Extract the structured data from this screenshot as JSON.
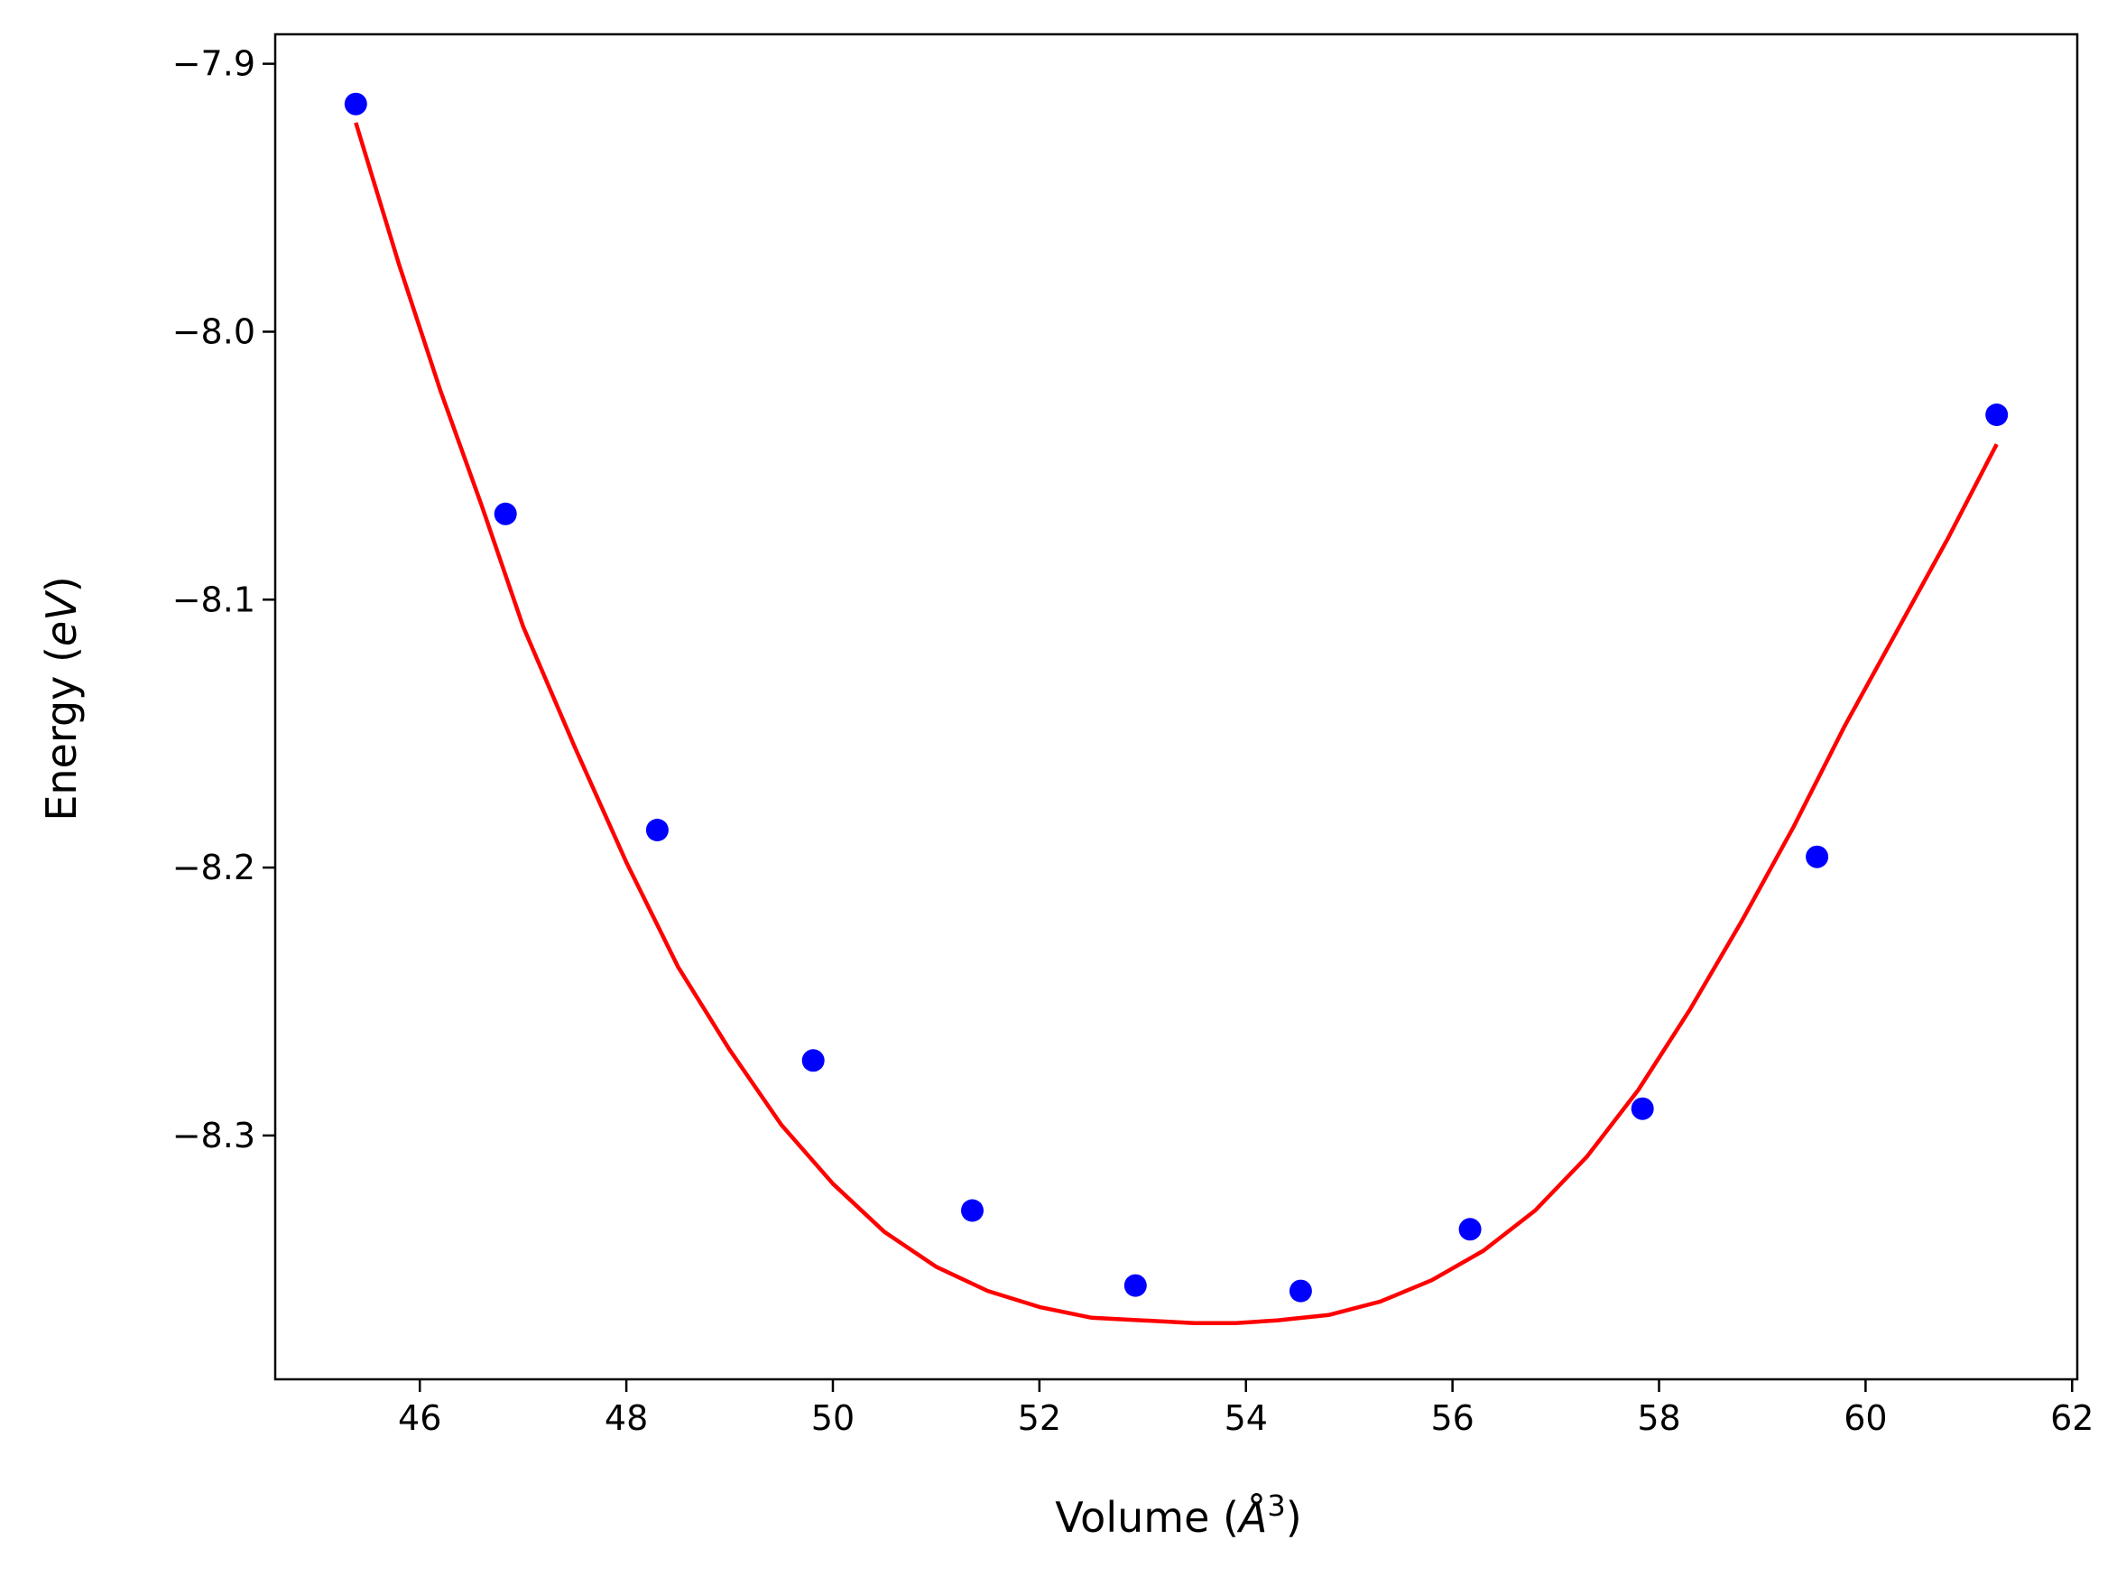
{
  "chart_data": {
    "type": "scatter",
    "xlabel": "Volume (",
    "xlabel_symbol": "Å",
    "xlabel_power": "3",
    "xlabel_close": ")",
    "ylabel": "Energy (",
    "ylabel_unit": "eV",
    "ylabel_close": ")",
    "xlim": [
      44.6,
      62.05
    ],
    "ylim": [
      -8.391,
      -7.889
    ],
    "xticks": [
      46,
      48,
      50,
      52,
      54,
      56,
      58,
      60,
      62
    ],
    "yticks": [
      -7.9,
      -8.0,
      -8.1,
      -8.2,
      -8.3
    ],
    "ytick_labels": [
      "−7.9",
      "−8.0",
      "−8.1",
      "−8.2",
      "−8.3"
    ],
    "grid": false,
    "series": [
      {
        "kind": "points",
        "color": "#0000ff",
        "x": [
          45.38,
          46.83,
          48.3,
          49.81,
          51.35,
          52.93,
          54.53,
          56.17,
          57.84,
          59.53,
          61.27
        ],
        "y": [
          -7.915,
          -8.068,
          -8.186,
          -8.272,
          -8.328,
          -8.356,
          -8.358,
          -8.335,
          -8.29,
          -8.196,
          -8.031
        ]
      },
      {
        "kind": "fit-curve",
        "color": "#ff0000",
        "x": [
          45.38,
          45.8,
          46.2,
          46.6,
          47.0,
          47.5,
          48.0,
          48.5,
          49.0,
          49.5,
          50.0,
          50.5,
          51.0,
          51.5,
          52.0,
          52.5,
          53.0,
          53.5,
          53.9,
          54.3,
          54.8,
          55.3,
          55.8,
          56.3,
          56.8,
          57.3,
          57.8,
          58.3,
          58.8,
          59.3,
          59.8,
          60.3,
          60.8,
          61.27
        ],
        "y": [
          -7.922,
          -7.975,
          -8.022,
          -8.065,
          -8.11,
          -8.155,
          -8.198,
          -8.237,
          -8.268,
          -8.296,
          -8.318,
          -8.336,
          -8.349,
          -8.358,
          -8.364,
          -8.368,
          -8.369,
          -8.37,
          -8.37,
          -8.369,
          -8.367,
          -8.362,
          -8.354,
          -8.343,
          -8.328,
          -8.308,
          -8.283,
          -8.253,
          -8.22,
          -8.185,
          -8.147,
          -8.112,
          -8.077,
          -8.042
        ]
      }
    ]
  }
}
